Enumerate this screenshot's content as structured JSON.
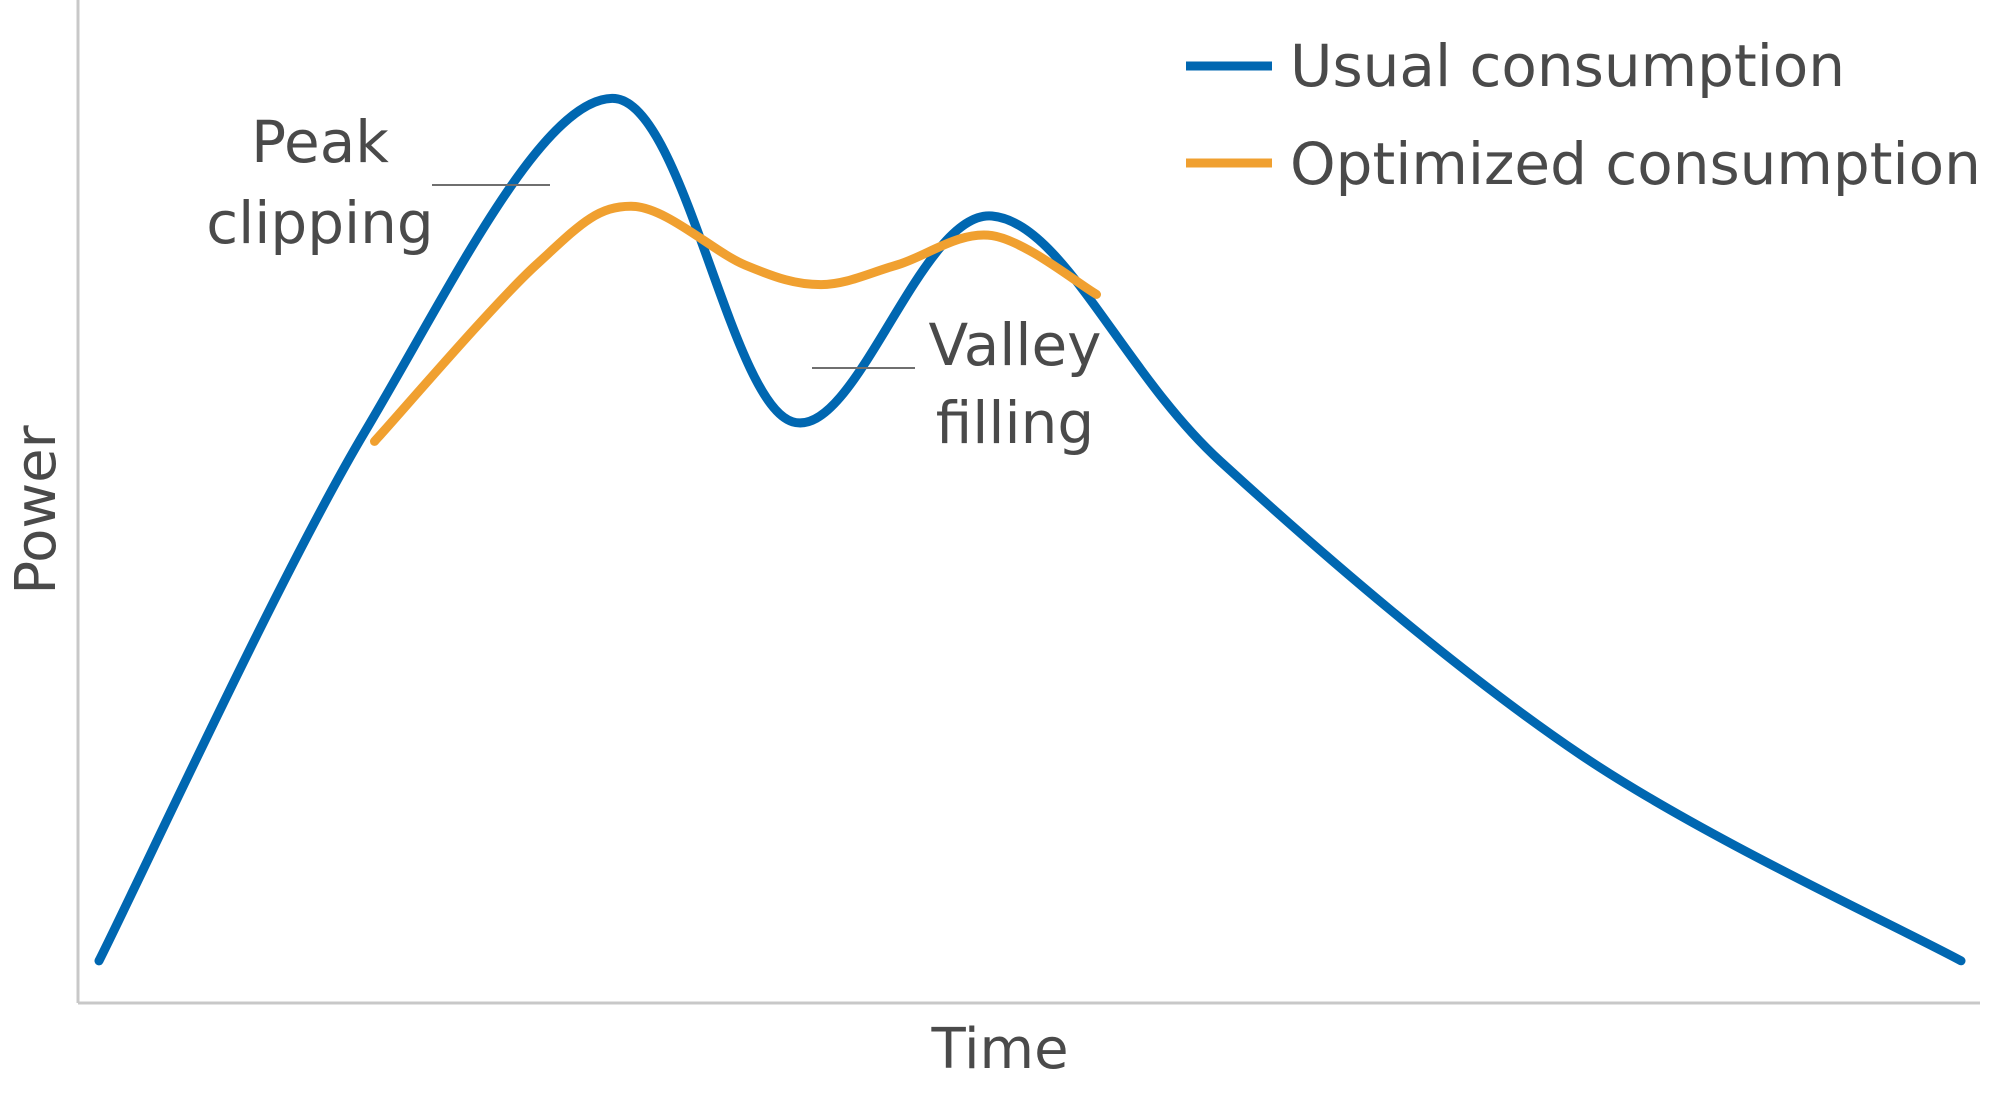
{
  "chart_data": {
    "type": "line",
    "xlabel": "Time",
    "ylabel": "Power",
    "xlim": [
      0,
      1
    ],
    "ylim": [
      0,
      1
    ],
    "grid": false,
    "legend_placement": "top-right",
    "series": [
      {
        "name": "Usual consumption",
        "color": "#0067b1",
        "points": [
          {
            "x": 0.01,
            "y": 0.04
          },
          {
            "x": 0.15,
            "y": 0.58
          },
          {
            "x": 0.28,
            "y": 0.92
          },
          {
            "x": 0.375,
            "y": 0.59
          },
          {
            "x": 0.48,
            "y": 0.8
          },
          {
            "x": 0.6,
            "y": 0.55
          },
          {
            "x": 0.79,
            "y": 0.25
          },
          {
            "x": 0.99,
            "y": 0.04
          }
        ]
      },
      {
        "name": "Optimized consumption",
        "color": "#f0a030",
        "points": [
          {
            "x": 0.155,
            "y": 0.57
          },
          {
            "x": 0.24,
            "y": 0.75
          },
          {
            "x": 0.29,
            "y": 0.81
          },
          {
            "x": 0.35,
            "y": 0.75
          },
          {
            "x": 0.39,
            "y": 0.73
          },
          {
            "x": 0.43,
            "y": 0.75
          },
          {
            "x": 0.48,
            "y": 0.78
          },
          {
            "x": 0.535,
            "y": 0.72
          }
        ]
      }
    ],
    "annotations": [
      {
        "id": "peak",
        "lines": [
          "Peak",
          "clipping"
        ]
      },
      {
        "id": "valley",
        "lines": [
          "Valley",
          "filling"
        ]
      }
    ]
  }
}
